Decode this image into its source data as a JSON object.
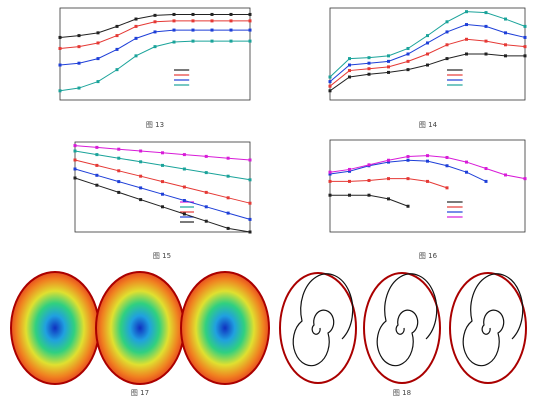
{
  "chart_data": [
    {
      "type": "line",
      "xlim": [
        0,
        10
      ],
      "ylim": [
        0,
        10
      ],
      "x": [
        0,
        1,
        2,
        3,
        4,
        5,
        6,
        7,
        8,
        9,
        10
      ],
      "series": [
        {
          "color": "#222222",
          "values": [
            6.8,
            7,
            7.3,
            8,
            8.8,
            9.2,
            9.3,
            9.3,
            9.3,
            9.3,
            9.3
          ]
        },
        {
          "color": "#e53935",
          "values": [
            5.6,
            5.8,
            6.2,
            7,
            8,
            8.5,
            8.6,
            8.6,
            8.6,
            8.6,
            8.6
          ]
        },
        {
          "color": "#1e3fd8",
          "values": [
            3.8,
            4,
            4.5,
            5.5,
            6.7,
            7.4,
            7.6,
            7.6,
            7.6,
            7.6,
            7.6
          ]
        },
        {
          "color": "#1aa39a",
          "values": [
            1,
            1.3,
            2,
            3.3,
            4.8,
            5.8,
            6.3,
            6.4,
            6.4,
            6.4,
            6.4
          ]
        }
      ]
    },
    {
      "type": "line",
      "xlim": [
        0,
        10
      ],
      "ylim": [
        0,
        10
      ],
      "x": [
        0,
        1,
        2,
        3,
        4,
        5,
        6,
        7,
        8,
        9,
        10
      ],
      "series": [
        {
          "color": "#222222",
          "values": [
            1,
            2.5,
            2.8,
            3,
            3.3,
            3.8,
            4.5,
            5,
            5,
            4.8,
            4.8
          ]
        },
        {
          "color": "#e53935",
          "values": [
            1.5,
            3.2,
            3.4,
            3.6,
            4.2,
            5,
            6,
            6.6,
            6.4,
            6,
            5.8
          ]
        },
        {
          "color": "#1e3fd8",
          "values": [
            2,
            3.8,
            4,
            4.2,
            5,
            6.2,
            7.4,
            8.2,
            8,
            7.3,
            6.8
          ]
        },
        {
          "color": "#1aa39a",
          "values": [
            2.5,
            4.5,
            4.6,
            4.8,
            5.6,
            7,
            8.5,
            9.6,
            9.5,
            8.8,
            8
          ]
        }
      ]
    },
    {
      "type": "line",
      "xlim": [
        0,
        8
      ],
      "ylim": [
        0,
        10
      ],
      "x": [
        0,
        1,
        2,
        3,
        4,
        5,
        6,
        7,
        8
      ],
      "series": [
        {
          "color": "#d81bd8",
          "values": [
            9.6,
            9.4,
            9.2,
            9,
            8.8,
            8.6,
            8.4,
            8.2,
            8
          ]
        },
        {
          "color": "#1aa39a",
          "values": [
            9,
            8.6,
            8.2,
            7.8,
            7.4,
            7,
            6.6,
            6.2,
            5.8
          ]
        },
        {
          "color": "#e53935",
          "values": [
            8,
            7.4,
            6.8,
            6.2,
            5.6,
            5,
            4.4,
            3.8,
            3.2
          ]
        },
        {
          "color": "#1e3fd8",
          "values": [
            7,
            6.3,
            5.6,
            4.9,
            4.2,
            3.5,
            2.8,
            2.1,
            1.4
          ]
        },
        {
          "color": "#222222",
          "values": [
            6,
            5.2,
            4.4,
            3.6,
            2.8,
            2,
            1.2,
            0.4,
            0
          ]
        }
      ]
    },
    {
      "type": "line",
      "xlim": [
        0,
        10
      ],
      "ylim": [
        0,
        10
      ],
      "x": [
        0,
        1,
        2,
        3,
        4,
        5,
        6,
        7,
        8,
        9,
        10
      ],
      "series": [
        {
          "color": "#222222",
          "values": [
            4,
            4,
            4,
            3.6,
            2.8,
            null,
            null,
            null,
            null,
            null,
            null
          ]
        },
        {
          "color": "#e53935",
          "values": [
            5.5,
            5.5,
            5.6,
            5.8,
            5.8,
            5.5,
            4.8,
            null,
            null,
            null,
            null
          ]
        },
        {
          "color": "#1e3fd8",
          "values": [
            6.3,
            6.6,
            7.2,
            7.6,
            7.8,
            7.7,
            7.2,
            6.5,
            5.5,
            null,
            null
          ]
        },
        {
          "color": "#d81bd8",
          "values": [
            6.5,
            6.8,
            7.3,
            7.8,
            8.2,
            8.3,
            8.1,
            7.6,
            6.9,
            6.2,
            5.8
          ]
        }
      ]
    }
  ],
  "captions": [
    "图 13",
    "图 14",
    "图 15",
    "图 16",
    "图 17",
    "图 18"
  ]
}
